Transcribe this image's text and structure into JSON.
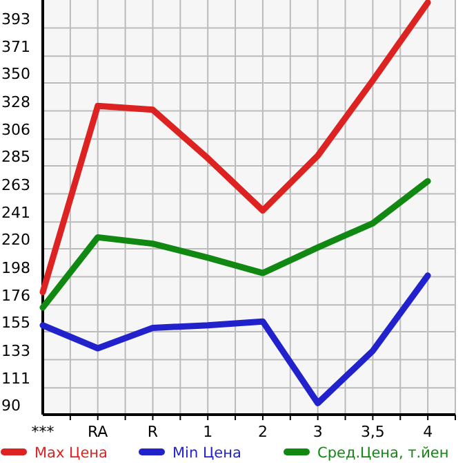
{
  "chart_data": {
    "type": "line",
    "categories": [
      "***",
      "RA",
      "R",
      "1",
      "2",
      "3",
      "3,5",
      "4"
    ],
    "series": [
      {
        "name": "Max Цена",
        "color": "#dd2222",
        "values": [
          186,
          332,
          329,
          291,
          250,
          293,
          352,
          413
        ]
      },
      {
        "name": "Min Цена",
        "color": "#2222cc",
        "values": [
          160,
          142,
          158,
          160,
          163,
          99,
          140,
          199
        ]
      },
      {
        "name": "Сред.Цена, т.йен",
        "color": "#118811",
        "values": [
          174,
          229,
          224,
          213,
          201,
          221,
          240,
          273
        ]
      }
    ],
    "ylim": [
      90,
      415
    ],
    "yticks": [
      90,
      111,
      133,
      155,
      176,
      198,
      220,
      241,
      263,
      285,
      306,
      328,
      350,
      371,
      393
    ],
    "grid": true,
    "legend": "bottom",
    "line_style": "solid",
    "marker": "none"
  }
}
